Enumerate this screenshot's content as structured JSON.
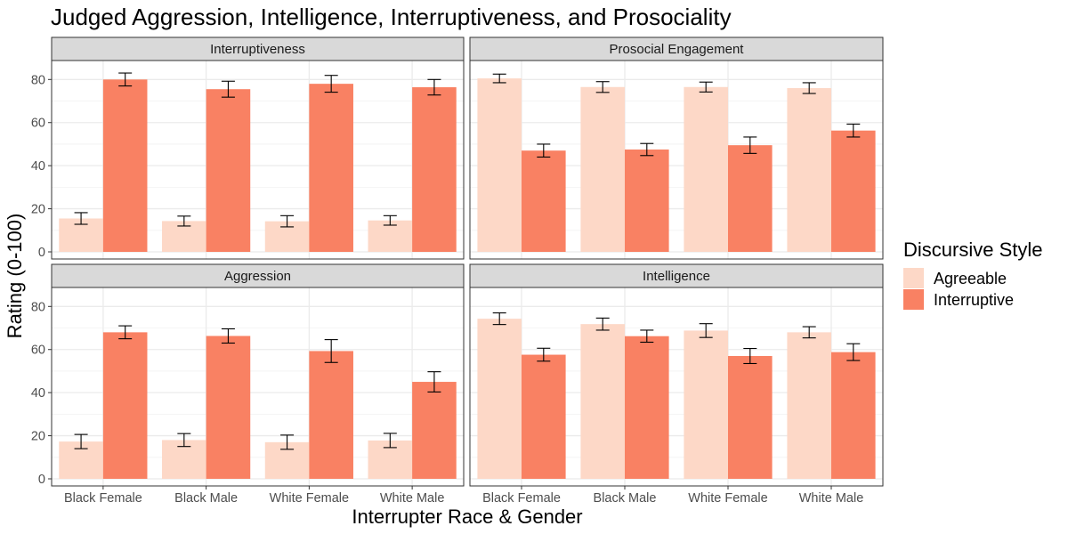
{
  "chart_data": {
    "type": "bar",
    "title": "Judged Aggression, Intelligence, Interruptiveness, and Prosociality",
    "xlabel": "Interrupter Race & Gender",
    "ylabel": "Rating (0-100)",
    "ylim": [
      0,
      80
    ],
    "y_ticks": [
      "0",
      "20",
      "40",
      "60",
      "80"
    ],
    "categories": [
      "Black Female",
      "Black Male",
      "White Female",
      "White Male"
    ],
    "legend": {
      "title": "Discursive Style",
      "position": "right",
      "entries": [
        {
          "name": "Agreeable",
          "color": "#fdd8c7"
        },
        {
          "name": "Interruptive",
          "color": "#f98163"
        }
      ]
    },
    "facets": [
      {
        "name": "Interruptiveness",
        "series": [
          {
            "name": "Agreeable",
            "values": [
              15.5,
              14.3,
              14.2,
              14.6
            ],
            "err": [
              2.7,
              2.3,
              2.6,
              2.2
            ]
          },
          {
            "name": "Interruptive",
            "values": [
              80.0,
              75.5,
              78.0,
              76.4
            ],
            "err": [
              3.0,
              3.7,
              3.9,
              3.6
            ]
          }
        ]
      },
      {
        "name": "Prosocial Engagement",
        "series": [
          {
            "name": "Agreeable",
            "values": [
              80.5,
              76.5,
              76.5,
              76.0
            ],
            "err": [
              2.0,
              2.5,
              2.3,
              2.5
            ]
          },
          {
            "name": "Interruptive",
            "values": [
              47.0,
              47.5,
              49.5,
              56.3
            ],
            "err": [
              3.0,
              2.8,
              3.8,
              3.0
            ]
          }
        ]
      },
      {
        "name": "Aggression",
        "series": [
          {
            "name": "Agreeable",
            "values": [
              17.3,
              18.0,
              17.0,
              17.8
            ],
            "err": [
              3.3,
              3.0,
              3.3,
              3.3
            ]
          },
          {
            "name": "Interruptive",
            "values": [
              68.0,
              66.3,
              59.3,
              45.0
            ],
            "err": [
              3.0,
              3.3,
              5.3,
              4.7
            ]
          }
        ]
      },
      {
        "name": "Intelligence",
        "series": [
          {
            "name": "Agreeable",
            "values": [
              74.3,
              71.8,
              68.8,
              68.0
            ],
            "err": [
              2.7,
              2.8,
              3.2,
              2.6
            ]
          },
          {
            "name": "Interruptive",
            "values": [
              57.6,
              66.2,
              57.0,
              58.8
            ],
            "err": [
              3.0,
              2.8,
              3.5,
              3.9
            ]
          }
        ]
      }
    ],
    "grid": true
  }
}
